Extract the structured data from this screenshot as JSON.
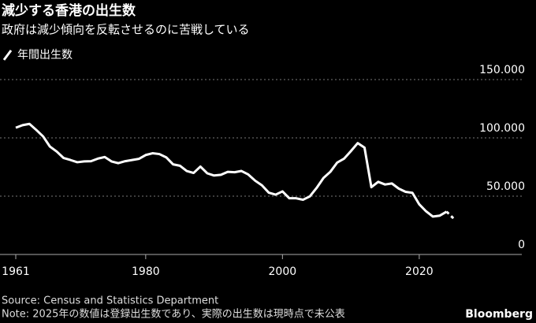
{
  "chart_data": {
    "type": "line",
    "title": "減少する香港の出生数",
    "subtitle": "政府は減少傾向を反転させるのに苦戦している",
    "x": [
      1961,
      1962,
      1963,
      1964,
      1965,
      1966,
      1967,
      1968,
      1969,
      1970,
      1971,
      1972,
      1973,
      1974,
      1975,
      1976,
      1977,
      1978,
      1979,
      1980,
      1981,
      1982,
      1983,
      1984,
      1985,
      1986,
      1987,
      1988,
      1989,
      1990,
      1991,
      1992,
      1993,
      1994,
      1995,
      1996,
      1997,
      1998,
      1999,
      2000,
      2001,
      2002,
      2003,
      2004,
      2005,
      2006,
      2007,
      2008,
      2009,
      2010,
      2011,
      2012,
      2013,
      2014,
      2015,
      2016,
      2017,
      2018,
      2019,
      2020,
      2021,
      2022,
      2023,
      2024,
      2025
    ],
    "series": [
      {
        "name": "年間出生数",
        "color": "#ffffff",
        "values": [
          108700,
          110900,
          112000,
          106800,
          101200,
          92500,
          88200,
          82700,
          81000,
          79100,
          79800,
          80000,
          82200,
          83600,
          79800,
          78300,
          80000,
          81000,
          82000,
          85300,
          86800,
          86100,
          83300,
          77300,
          76100,
          71600,
          69900,
          75400,
          69600,
          67700,
          68300,
          70900,
          70500,
          71600,
          68600,
          63300,
          59300,
          53000,
          51300,
          54100,
          48200,
          48200,
          46900,
          49800,
          57100,
          65600,
          70900,
          78800,
          82100,
          88600,
          95500,
          91600,
          57700,
          62300,
          60000,
          60900,
          56500,
          53700,
          52900,
          43000,
          37000,
          32500,
          33300,
          36700,
          31000
        ]
      }
    ],
    "dashed_from": 2024,
    "xlim": [
      1961,
      2035
    ],
    "xticks": [
      1961,
      1980,
      2000,
      2020
    ],
    "ylim": [
      0,
      150000
    ],
    "yticks": [
      0,
      {
        "value": 50000,
        "label": "50.000"
      },
      {
        "value": 100000,
        "label": "100.000"
      },
      {
        "value": 150000,
        "label": "150.000"
      }
    ],
    "grid": true,
    "source": "Source: Census and Statistics Department",
    "note": "Note: 2025年の数値は登録出生数であり、実際の出生数は現時点で未公表",
    "brand": "Bloomberg"
  }
}
